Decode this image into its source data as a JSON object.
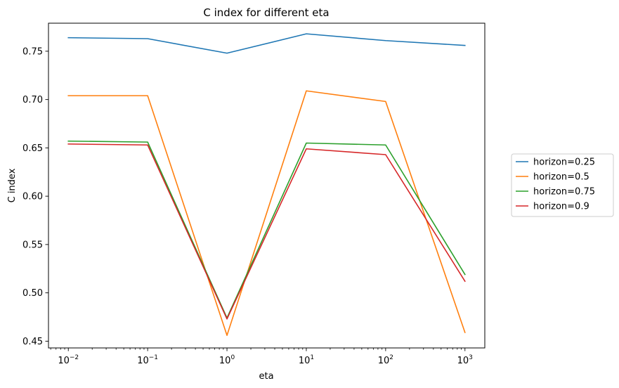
{
  "chart_data": {
    "type": "line",
    "title": "C index for different eta",
    "xlabel": "eta",
    "ylabel": "C index",
    "xscale": "log",
    "x": [
      0.01,
      0.1,
      1,
      10,
      100,
      1000
    ],
    "x_tick_base": "10",
    "x_tick_exponents": [
      "−2",
      "−1",
      "0",
      "1",
      "2",
      "3"
    ],
    "ylim": [
      0.443,
      0.779
    ],
    "y_ticks": [
      0.45,
      0.5,
      0.55,
      0.6,
      0.65,
      0.7,
      0.75
    ],
    "y_tick_labels": [
      "0.45",
      "0.50",
      "0.55",
      "0.60",
      "0.65",
      "0.70",
      "0.75"
    ],
    "grid": false,
    "legend_position": "outside-right",
    "series": [
      {
        "name": "horizon=0.25",
        "color": "#1f77b4",
        "values": [
          0.764,
          0.763,
          0.748,
          0.768,
          0.761,
          0.756
        ]
      },
      {
        "name": "horizon=0.5",
        "color": "#ff7f0e",
        "values": [
          0.704,
          0.704,
          0.456,
          0.709,
          0.698,
          0.459
        ]
      },
      {
        "name": "horizon=0.75",
        "color": "#2ca02c",
        "values": [
          0.657,
          0.656,
          0.474,
          0.655,
          0.653,
          0.519
        ]
      },
      {
        "name": "horizon=0.9",
        "color": "#d62728",
        "values": [
          0.654,
          0.653,
          0.473,
          0.649,
          0.643,
          0.512
        ]
      }
    ]
  }
}
